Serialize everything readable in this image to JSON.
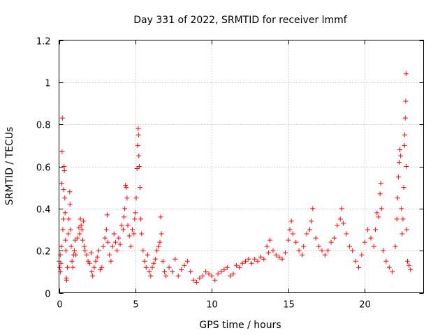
{
  "chart_data": {
    "type": "scatter",
    "title": "Day 331 of 2022, SRMTID for receiver lmmf",
    "xlabel": "GPS time / hours",
    "ylabel": "SRMTID / TECUs",
    "xlim": [
      0,
      23.85
    ],
    "ylim": [
      0,
      1.2
    ],
    "xticks": [
      0,
      5,
      10,
      15,
      20
    ],
    "xtick_labels": [
      "0",
      "5",
      "10",
      "15",
      "20"
    ],
    "yticks": [
      0,
      0.2,
      0.4,
      0.6,
      0.8,
      1.0,
      1.2
    ],
    "ytick_labels": [
      "0",
      "0.2",
      "0.4",
      "0.6",
      "0.8",
      "1",
      "1.2"
    ],
    "grid": true,
    "marker": "+",
    "marker_color": "#ff0000",
    "series": [
      {
        "name": "SRMTID",
        "points": [
          [
            0.0,
            0.15
          ],
          [
            0.05,
            0.12
          ],
          [
            0.08,
            0.18
          ],
          [
            0.1,
            0.1
          ],
          [
            0.12,
            0.14
          ],
          [
            0.15,
            0.22
          ],
          [
            0.18,
            0.52
          ],
          [
            0.2,
            0.67
          ],
          [
            0.22,
            0.83
          ],
          [
            0.25,
            0.3
          ],
          [
            0.28,
            0.35
          ],
          [
            0.3,
            0.49
          ],
          [
            0.33,
            0.6
          ],
          [
            0.35,
            0.58
          ],
          [
            0.38,
            0.45
          ],
          [
            0.4,
            0.38
          ],
          [
            0.42,
            0.25
          ],
          [
            0.45,
            0.2
          ],
          [
            0.48,
            0.07
          ],
          [
            0.5,
            0.06
          ],
          [
            0.55,
            0.12
          ],
          [
            0.6,
            0.28
          ],
          [
            0.65,
            0.35
          ],
          [
            0.7,
            0.48
          ],
          [
            0.72,
            0.42
          ],
          [
            0.75,
            0.3
          ],
          [
            0.8,
            0.22
          ],
          [
            0.85,
            0.15
          ],
          [
            0.9,
            0.12
          ],
          [
            0.95,
            0.18
          ],
          [
            1.0,
            0.2
          ],
          [
            1.05,
            0.25
          ],
          [
            1.1,
            0.18
          ],
          [
            1.2,
            0.26
          ],
          [
            1.3,
            0.31
          ],
          [
            1.35,
            0.28
          ],
          [
            1.4,
            0.35
          ],
          [
            1.45,
            0.32
          ],
          [
            1.5,
            0.3
          ],
          [
            1.55,
            0.25
          ],
          [
            1.6,
            0.34
          ],
          [
            1.65,
            0.22
          ],
          [
            1.7,
            0.2
          ],
          [
            1.8,
            0.18
          ],
          [
            1.9,
            0.15
          ],
          [
            2.0,
            0.14
          ],
          [
            2.1,
            0.19
          ],
          [
            2.15,
            0.1
          ],
          [
            2.2,
            0.08
          ],
          [
            2.3,
            0.12
          ],
          [
            2.4,
            0.15
          ],
          [
            2.5,
            0.17
          ],
          [
            2.6,
            0.2
          ],
          [
            2.7,
            0.11
          ],
          [
            2.8,
            0.12
          ],
          [
            2.9,
            0.22
          ],
          [
            3.0,
            0.26
          ],
          [
            3.1,
            0.3
          ],
          [
            3.15,
            0.37
          ],
          [
            3.2,
            0.24
          ],
          [
            3.3,
            0.18
          ],
          [
            3.4,
            0.15
          ],
          [
            3.5,
            0.22
          ],
          [
            3.6,
            0.28
          ],
          [
            3.7,
            0.24
          ],
          [
            3.8,
            0.2
          ],
          [
            3.9,
            0.26
          ],
          [
            4.0,
            0.23
          ],
          [
            4.1,
            0.32
          ],
          [
            4.2,
            0.3
          ],
          [
            4.25,
            0.36
          ],
          [
            4.3,
            0.4
          ],
          [
            4.35,
            0.51
          ],
          [
            4.4,
            0.5
          ],
          [
            4.45,
            0.45
          ],
          [
            4.5,
            0.32
          ],
          [
            4.6,
            0.27
          ],
          [
            4.7,
            0.22
          ],
          [
            4.8,
            0.3
          ],
          [
            4.9,
            0.28
          ],
          [
            4.95,
            0.35
          ],
          [
            5.0,
            0.38
          ],
          [
            5.05,
            0.45
          ],
          [
            5.1,
            0.59
          ],
          [
            5.15,
            0.7
          ],
          [
            5.18,
            0.78
          ],
          [
            5.2,
            0.75
          ],
          [
            5.22,
            0.65
          ],
          [
            5.25,
            0.6
          ],
          [
            5.3,
            0.5
          ],
          [
            5.35,
            0.35
          ],
          [
            5.4,
            0.28
          ],
          [
            5.5,
            0.2
          ],
          [
            5.6,
            0.15
          ],
          [
            5.7,
            0.12
          ],
          [
            5.8,
            0.18
          ],
          [
            5.9,
            0.1
          ],
          [
            6.0,
            0.08
          ],
          [
            6.1,
            0.12
          ],
          [
            6.2,
            0.14
          ],
          [
            6.3,
            0.16
          ],
          [
            6.4,
            0.2
          ],
          [
            6.5,
            0.22
          ],
          [
            6.6,
            0.24
          ],
          [
            6.65,
            0.36
          ],
          [
            6.7,
            0.28
          ],
          [
            6.8,
            0.15
          ],
          [
            6.9,
            0.1
          ],
          [
            7.0,
            0.08
          ],
          [
            7.2,
            0.12
          ],
          [
            7.4,
            0.1
          ],
          [
            7.6,
            0.16
          ],
          [
            7.8,
            0.08
          ],
          [
            8.0,
            0.11
          ],
          [
            8.2,
            0.13
          ],
          [
            8.4,
            0.15
          ],
          [
            8.6,
            0.1
          ],
          [
            8.8,
            0.06
          ],
          [
            9.0,
            0.05
          ],
          [
            9.2,
            0.07
          ],
          [
            9.4,
            0.08
          ],
          [
            9.6,
            0.1
          ],
          [
            9.8,
            0.09
          ],
          [
            10.0,
            0.08
          ],
          [
            10.2,
            0.06
          ],
          [
            10.4,
            0.09
          ],
          [
            10.6,
            0.1
          ],
          [
            10.8,
            0.11
          ],
          [
            11.0,
            0.12
          ],
          [
            11.2,
            0.08
          ],
          [
            11.4,
            0.09
          ],
          [
            11.6,
            0.13
          ],
          [
            11.8,
            0.12
          ],
          [
            12.0,
            0.14
          ],
          [
            12.2,
            0.15
          ],
          [
            12.4,
            0.16
          ],
          [
            12.6,
            0.14
          ],
          [
            12.8,
            0.16
          ],
          [
            13.0,
            0.15
          ],
          [
            13.2,
            0.17
          ],
          [
            13.4,
            0.16
          ],
          [
            13.6,
            0.22
          ],
          [
            13.7,
            0.19
          ],
          [
            13.8,
            0.25
          ],
          [
            14.0,
            0.2
          ],
          [
            14.2,
            0.18
          ],
          [
            14.4,
            0.17
          ],
          [
            14.6,
            0.16
          ],
          [
            14.8,
            0.19
          ],
          [
            15.0,
            0.25
          ],
          [
            15.1,
            0.3
          ],
          [
            15.2,
            0.34
          ],
          [
            15.3,
            0.28
          ],
          [
            15.5,
            0.24
          ],
          [
            15.7,
            0.2
          ],
          [
            15.9,
            0.18
          ],
          [
            16.0,
            0.22
          ],
          [
            16.2,
            0.28
          ],
          [
            16.4,
            0.3
          ],
          [
            16.5,
            0.34
          ],
          [
            16.6,
            0.4
          ],
          [
            16.8,
            0.26
          ],
          [
            17.0,
            0.22
          ],
          [
            17.2,
            0.2
          ],
          [
            17.4,
            0.18
          ],
          [
            17.6,
            0.2
          ],
          [
            17.8,
            0.24
          ],
          [
            18.0,
            0.26
          ],
          [
            18.2,
            0.32
          ],
          [
            18.4,
            0.35
          ],
          [
            18.5,
            0.4
          ],
          [
            18.6,
            0.33
          ],
          [
            18.8,
            0.28
          ],
          [
            19.0,
            0.22
          ],
          [
            19.2,
            0.2
          ],
          [
            19.4,
            0.15
          ],
          [
            19.6,
            0.12
          ],
          [
            19.8,
            0.18
          ],
          [
            20.0,
            0.24
          ],
          [
            20.2,
            0.3
          ],
          [
            20.4,
            0.26
          ],
          [
            20.6,
            0.22
          ],
          [
            20.7,
            0.3
          ],
          [
            20.8,
            0.38
          ],
          [
            20.9,
            0.36
          ],
          [
            21.0,
            0.47
          ],
          [
            21.05,
            0.52
          ],
          [
            21.1,
            0.4
          ],
          [
            21.2,
            0.2
          ],
          [
            21.4,
            0.15
          ],
          [
            21.6,
            0.12
          ],
          [
            21.8,
            0.1
          ],
          [
            22.0,
            0.22
          ],
          [
            22.1,
            0.35
          ],
          [
            22.15,
            0.45
          ],
          [
            22.2,
            0.55
          ],
          [
            22.25,
            0.62
          ],
          [
            22.3,
            0.68
          ],
          [
            22.35,
            0.65
          ],
          [
            22.4,
            0.4
          ],
          [
            22.45,
            0.28
          ],
          [
            22.5,
            0.35
          ],
          [
            22.55,
            0.5
          ],
          [
            22.6,
            0.7
          ],
          [
            22.62,
            0.75
          ],
          [
            22.65,
            0.83
          ],
          [
            22.68,
            0.91
          ],
          [
            22.7,
            1.04
          ],
          [
            22.72,
            0.6
          ],
          [
            22.75,
            0.3
          ],
          [
            22.8,
            0.15
          ],
          [
            22.9,
            0.13
          ],
          [
            23.0,
            0.11
          ]
        ]
      }
    ]
  }
}
